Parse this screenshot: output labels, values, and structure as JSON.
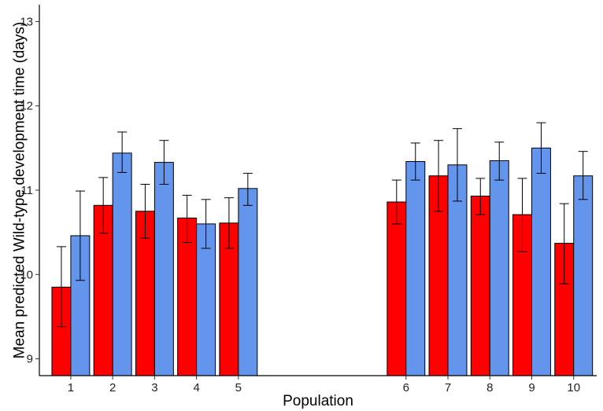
{
  "chart_data": {
    "type": "bar",
    "title": "",
    "xlabel": "Population",
    "ylabel": "Mean predicted Wild-type development time (days)",
    "ylim": [
      8.8,
      13.2
    ],
    "yticks": [
      9,
      10,
      11,
      12,
      13
    ],
    "grid": false,
    "legend": "none",
    "categories": [
      "1",
      "2",
      "3",
      "4",
      "5",
      "6",
      "7",
      "8",
      "9",
      "10"
    ],
    "category_positions": [
      1,
      2,
      3,
      4,
      5,
      9,
      10,
      11,
      12,
      13
    ],
    "xlim": [
      0.25,
      13.55
    ],
    "series": [
      {
        "color": "#ff0000",
        "values": [
          9.85,
          10.82,
          10.75,
          10.67,
          10.61,
          10.86,
          11.17,
          10.93,
          10.71,
          10.37
        ],
        "err_low": [
          9.38,
          10.49,
          10.43,
          10.38,
          10.31,
          10.6,
          10.75,
          10.71,
          10.27,
          9.89
        ],
        "err_high": [
          10.33,
          11.15,
          11.07,
          10.94,
          10.91,
          11.12,
          11.59,
          11.14,
          11.14,
          10.84
        ]
      },
      {
        "color": "#6495ed",
        "values": [
          10.46,
          11.44,
          11.33,
          10.6,
          11.02,
          11.34,
          11.3,
          11.35,
          11.5,
          11.17
        ],
        "err_low": [
          9.93,
          11.21,
          11.07,
          10.31,
          10.82,
          11.12,
          10.87,
          11.12,
          11.2,
          10.89
        ],
        "err_high": [
          10.99,
          11.69,
          11.59,
          10.89,
          11.2,
          11.56,
          11.73,
          11.57,
          11.8,
          11.46
        ]
      }
    ]
  }
}
